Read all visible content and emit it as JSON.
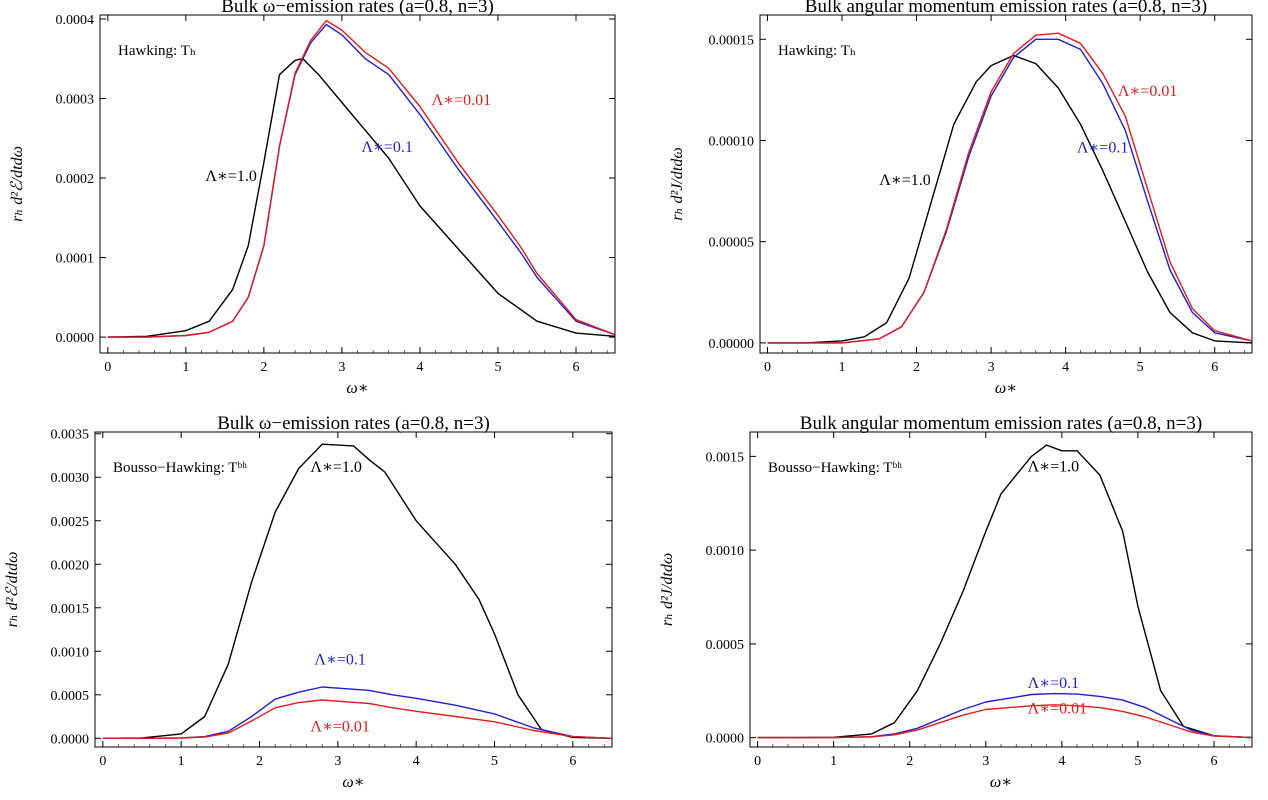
{
  "chart_data": [
    {
      "type": "line",
      "title": "Bulk ω−emission rates (a=0.8, n=3)",
      "xlabel": "ω∗",
      "ylabel": "rₕ d²ℰ/dtdω",
      "xlim": [
        -0.1,
        6.5
      ],
      "ylim": [
        -2e-05,
        0.000405
      ],
      "x_ticks": [
        "0",
        "1",
        "2",
        "3",
        "4",
        "5",
        "6"
      ],
      "y_ticks": [
        "0.0000",
        "0.0001",
        "0.0002",
        "0.0003",
        "0.0004"
      ],
      "y_tick_values": [
        0,
        0.0001,
        0.0002,
        0.0003,
        0.0004
      ],
      "note": "Hawking: Tₕ",
      "series": [
        {
          "name": "Λ∗=1.0",
          "color": "#000000",
          "label_pos": [
            1.25,
            0.000196
          ],
          "x": [
            0,
            0.5,
            1.0,
            1.3,
            1.6,
            1.8,
            2.0,
            2.2,
            2.4,
            2.5,
            2.7,
            3.0,
            3.3,
            3.6,
            4.0,
            4.5,
            5.0,
            5.5,
            6.0,
            6.5
          ],
          "y": [
            0,
            1e-06,
            8e-06,
            2e-05,
            6e-05,
            0.000115,
            0.00022,
            0.00033,
            0.000348,
            0.00035,
            0.00033,
            0.000295,
            0.00026,
            0.000225,
            0.000165,
            0.00011,
            5.5e-05,
            2e-05,
            5e-06,
            1e-06
          ]
        },
        {
          "name": "Λ∗=0.1",
          "color": "#1f1fd0",
          "label_pos": [
            3.25,
            0.000233
          ],
          "x": [
            0,
            0.5,
            1.0,
            1.3,
            1.6,
            1.8,
            2.0,
            2.2,
            2.4,
            2.6,
            2.8,
            3.0,
            3.3,
            3.6,
            4.0,
            4.5,
            5.0,
            5.3,
            5.5,
            6.0,
            6.5
          ],
          "y": [
            0,
            0,
            2e-06,
            6e-06,
            2e-05,
            5e-05,
            0.000115,
            0.00024,
            0.00033,
            0.00037,
            0.000393,
            0.00038,
            0.00035,
            0.00033,
            0.00028,
            0.00021,
            0.000145,
            0.000105,
            7.5e-05,
            2e-05,
            3e-06
          ]
        },
        {
          "name": "Λ∗=0.01",
          "color": "#e21b1b",
          "label_pos": [
            4.15,
            0.000292
          ],
          "x": [
            0,
            0.5,
            1.0,
            1.3,
            1.6,
            1.8,
            2.0,
            2.2,
            2.4,
            2.6,
            2.8,
            3.0,
            3.3,
            3.6,
            4.0,
            4.5,
            5.0,
            5.3,
            5.5,
            6.0,
            6.5
          ],
          "y": [
            0,
            0,
            2e-06,
            6e-06,
            2e-05,
            5e-05,
            0.000115,
            0.00024,
            0.000332,
            0.000373,
            0.000398,
            0.000386,
            0.000358,
            0.000338,
            0.00029,
            0.000218,
            0.000153,
            0.000112,
            8e-05,
            2.2e-05,
            3e-06
          ]
        }
      ]
    },
    {
      "type": "line",
      "title": "Bulk angular momentum emission rates (a=0.8, n=3)",
      "xlabel": "ω∗",
      "ylabel": "rₕ d²J/dtdω",
      "xlim": [
        -0.1,
        6.5
      ],
      "ylim": [
        -5e-06,
        0.000162
      ],
      "x_ticks": [
        "0",
        "1",
        "2",
        "3",
        "4",
        "5",
        "6"
      ],
      "y_ticks": [
        "0.00000",
        "0.00005",
        "0.00010",
        "0.00015"
      ],
      "y_tick_values": [
        0,
        5e-05,
        0.0001,
        0.00015
      ],
      "note": "Hawking: Tₕ",
      "series": [
        {
          "name": "Λ∗=1.0",
          "color": "#000000",
          "label_pos": [
            1.5,
            7.8e-05
          ],
          "x": [
            0,
            0.5,
            1.0,
            1.3,
            1.6,
            1.9,
            2.2,
            2.5,
            2.8,
            3.0,
            3.3,
            3.6,
            3.9,
            4.2,
            4.5,
            4.8,
            5.1,
            5.4,
            5.7,
            6.0,
            6.5
          ],
          "y": [
            0,
            0,
            1e-06,
            3e-06,
            1e-05,
            3.2e-05,
            7e-05,
            0.000108,
            0.000129,
            0.000137,
            0.000142,
            0.000138,
            0.000126,
            0.000108,
            8.5e-05,
            6e-05,
            3.5e-05,
            1.5e-05,
            5e-06,
            1e-06,
            0
          ]
        },
        {
          "name": "Λ∗=0.1",
          "color": "#1f1fd0",
          "label_pos": [
            4.15,
            9.4e-05
          ],
          "x": [
            0,
            0.5,
            1.0,
            1.5,
            1.8,
            2.1,
            2.4,
            2.7,
            3.0,
            3.3,
            3.6,
            3.9,
            4.2,
            4.5,
            4.8,
            5.1,
            5.4,
            5.7,
            6.0,
            6.5
          ],
          "y": [
            0,
            0,
            0,
            2e-06,
            8e-06,
            2.5e-05,
            5.5e-05,
            9.2e-05,
            0.000122,
            0.000141,
            0.00015,
            0.00015,
            0.000145,
            0.000128,
            0.000105,
            7e-05,
            3.6e-05,
            1.5e-05,
            5e-06,
            1e-06
          ]
        },
        {
          "name": "Λ∗=0.01",
          "color": "#e21b1b",
          "label_pos": [
            4.7,
            0.000122
          ],
          "x": [
            0,
            0.5,
            1.0,
            1.5,
            1.8,
            2.1,
            2.4,
            2.7,
            3.0,
            3.3,
            3.6,
            3.9,
            4.2,
            4.5,
            4.8,
            5.1,
            5.4,
            5.7,
            6.0,
            6.5
          ],
          "y": [
            0,
            0,
            0,
            2e-06,
            8e-06,
            2.5e-05,
            5.6e-05,
            9.4e-05,
            0.000124,
            0.000143,
            0.000152,
            0.000153,
            0.000148,
            0.000133,
            0.000112,
            7.6e-05,
            4e-05,
            1.7e-05,
            6e-06,
            1e-06
          ]
        }
      ]
    },
    {
      "type": "line",
      "title": "Bulk ω−emission rates (a=0.8, n=3)",
      "xlabel": "ω∗",
      "ylabel": "rₕ d²ℰ/dtdω",
      "xlim": [
        -0.1,
        6.5
      ],
      "ylim": [
        -0.0001,
        0.00352
      ],
      "x_ticks": [
        "0",
        "1",
        "2",
        "3",
        "4",
        "5",
        "6"
      ],
      "y_ticks": [
        "0.0000",
        "0.0005",
        "0.0010",
        "0.0015",
        "0.0020",
        "0.0025",
        "0.0030",
        "0.0035"
      ],
      "y_tick_values": [
        0,
        0.0005,
        0.001,
        0.0015,
        0.002,
        0.0025,
        0.003,
        0.0035
      ],
      "note": "Bousso−Hawking: Tᵇʰ",
      "series": [
        {
          "name": "Λ∗=1.0",
          "color": "#000000",
          "label_pos": [
            2.65,
            0.00306
          ],
          "x": [
            0,
            0.5,
            1.0,
            1.3,
            1.6,
            1.9,
            2.2,
            2.5,
            2.8,
            3.0,
            3.2,
            3.4,
            3.6,
            4.0,
            4.5,
            4.8,
            5.0,
            5.3,
            5.6,
            6.0,
            6.5
          ],
          "y": [
            0,
            5e-06,
            5e-05,
            0.00025,
            0.00085,
            0.0018,
            0.0026,
            0.0031,
            0.00338,
            0.00337,
            0.00336,
            0.0032,
            0.00306,
            0.0025,
            0.002,
            0.0016,
            0.0012,
            0.0005,
            0.0001,
            1e-05,
            0
          ]
        },
        {
          "name": "Λ∗=0.1",
          "color": "#1f1fd0",
          "label_pos": [
            2.7,
            0.00085
          ],
          "x": [
            0,
            0.5,
            1.0,
            1.3,
            1.6,
            1.9,
            2.2,
            2.5,
            2.8,
            3.1,
            3.4,
            3.7,
            4.0,
            4.5,
            5.0,
            5.5,
            6.0,
            6.5
          ],
          "y": [
            0,
            0,
            5e-06,
            2e-05,
            8e-05,
            0.00025,
            0.00045,
            0.00053,
            0.00059,
            0.00057,
            0.00055,
            0.0005,
            0.00046,
            0.00038,
            0.00028,
            0.00012,
            2e-05,
            0
          ]
        },
        {
          "name": "Λ∗=0.01",
          "color": "#e21b1b",
          "label_pos": [
            2.65,
            8e-05
          ],
          "x": [
            0,
            0.5,
            1.0,
            1.3,
            1.6,
            1.9,
            2.2,
            2.5,
            2.8,
            3.1,
            3.4,
            3.7,
            4.0,
            4.5,
            5.0,
            5.5,
            6.0,
            6.5
          ],
          "y": [
            0,
            0,
            4e-06,
            1.5e-05,
            6e-05,
            0.0002,
            0.00035,
            0.00041,
            0.00044,
            0.00042,
            0.0004,
            0.00035,
            0.00031,
            0.00025,
            0.00019,
            9e-05,
            2e-05,
            0
          ]
        }
      ]
    },
    {
      "type": "line",
      "title": "Bulk angular momentum emission rates (a=0.8, n=3)",
      "xlabel": "ω∗",
      "ylabel": "rₕ d²J/dtdω",
      "xlim": [
        -0.1,
        6.5
      ],
      "ylim": [
        -5e-05,
        0.00163
      ],
      "x_ticks": [
        "0",
        "1",
        "2",
        "3",
        "4",
        "5",
        "6"
      ],
      "y_ticks": [
        "0.0000",
        "0.0005",
        "0.0010",
        "0.0015"
      ],
      "y_tick_values": [
        0,
        0.0005,
        0.001,
        0.0015
      ],
      "note": "Bousso−Hawking: Tᵇʰ",
      "series": [
        {
          "name": "Λ∗=1.0",
          "color": "#000000",
          "label_pos": [
            3.55,
            0.00142
          ],
          "x": [
            0,
            0.5,
            1.0,
            1.5,
            1.8,
            2.1,
            2.4,
            2.7,
            3.0,
            3.2,
            3.4,
            3.6,
            3.8,
            4.0,
            4.2,
            4.5,
            4.8,
            5.0,
            5.3,
            5.6,
            6.0,
            6.5
          ],
          "y": [
            0,
            0,
            2e-06,
            2e-05,
            8e-05,
            0.00025,
            0.0005,
            0.00078,
            0.0011,
            0.0013,
            0.0014,
            0.0015,
            0.00156,
            0.00153,
            0.00153,
            0.0014,
            0.0011,
            0.0007,
            0.00025,
            6e-05,
            1e-05,
            0
          ]
        },
        {
          "name": "Λ∗=0.1",
          "color": "#1f1fd0",
          "label_pos": [
            3.55,
            0.000265
          ],
          "x": [
            0,
            0.5,
            1.0,
            1.5,
            1.8,
            2.1,
            2.4,
            2.7,
            3.0,
            3.3,
            3.6,
            3.9,
            4.2,
            4.5,
            4.8,
            5.1,
            5.4,
            5.7,
            6.0,
            6.5
          ],
          "y": [
            0,
            0,
            0,
            5e-06,
            2e-05,
            5e-05,
            0.0001,
            0.00015,
            0.00019,
            0.00021,
            0.00023,
            0.000235,
            0.000232,
            0.00022,
            0.0002,
            0.00016,
            0.0001,
            4e-05,
            1e-05,
            0
          ]
        },
        {
          "name": "Λ∗=0.01",
          "color": "#e21b1b",
          "label_pos": [
            3.55,
            0.00013
          ],
          "x": [
            0,
            0.5,
            1.0,
            1.5,
            1.8,
            2.1,
            2.4,
            2.7,
            3.0,
            3.3,
            3.6,
            3.9,
            4.2,
            4.5,
            4.8,
            5.1,
            5.4,
            5.7,
            6.0,
            6.5
          ],
          "y": [
            0,
            0,
            0,
            4e-06,
            1.5e-05,
            4e-05,
            8e-05,
            0.00012,
            0.00015,
            0.00016,
            0.00017,
            0.000175,
            0.00017,
            0.00016,
            0.00014,
            0.00011,
            7e-05,
            3e-05,
            8e-06,
            0
          ]
        }
      ]
    }
  ]
}
